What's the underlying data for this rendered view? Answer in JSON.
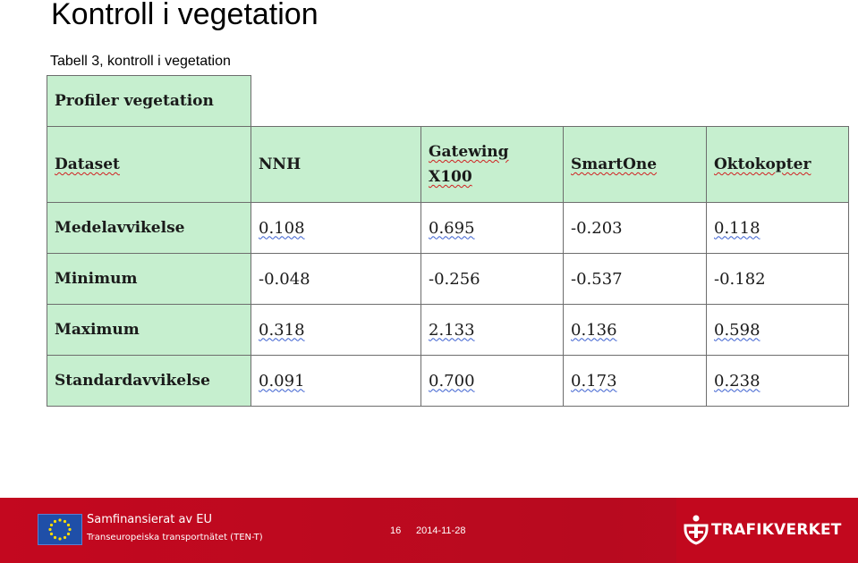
{
  "slide": {
    "title": "Kontroll i vegetation",
    "caption": "Tabell 3, kontroll i vegetation"
  },
  "table": {
    "title": "Profiler vegetation",
    "headers": [
      "Dataset",
      "NNH",
      "Gatewing X100",
      "SmartOne",
      "Oktokopter"
    ],
    "rows": [
      {
        "label": "Medelavvikelse",
        "values": [
          "0.108",
          "0.695",
          "-0.203",
          "0.118"
        ]
      },
      {
        "label": "Minimum",
        "values": [
          "-0.048",
          "-0.256",
          "-0.537",
          "-0.182"
        ]
      },
      {
        "label": "Maximum",
        "values": [
          "0.318",
          "2.133",
          "0.136",
          "0.598"
        ]
      },
      {
        "label": "Standardavvikelse",
        "values": [
          "0.091",
          "0.700",
          "0.173",
          "0.238"
        ]
      }
    ],
    "header_bg": "#c6efcf"
  },
  "footer": {
    "eu_line1": "Samfinansierat av EU",
    "eu_line2": "Transeuropeiska transportnätet (TEN-T)",
    "page_number": "16",
    "date": "2014-11-28",
    "brand": "TRAFIKVERKET",
    "bg_color": "#c3081f"
  }
}
